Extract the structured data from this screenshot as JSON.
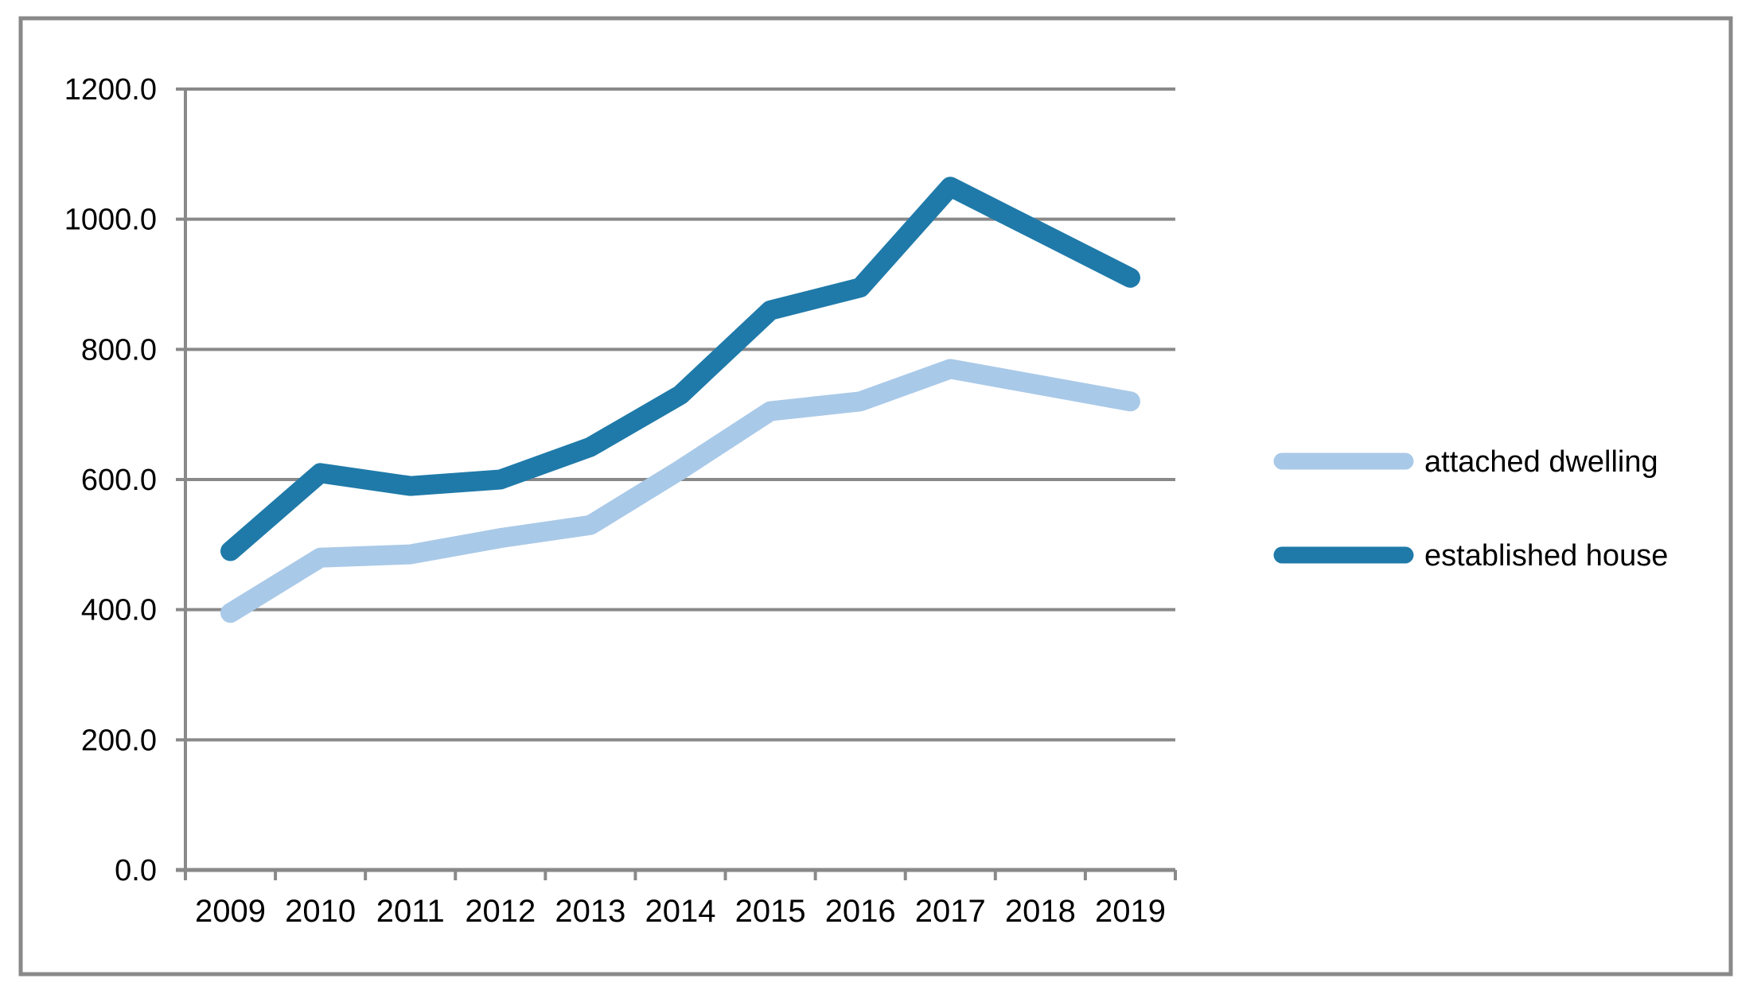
{
  "chart_data": {
    "type": "line",
    "title": "",
    "xlabel": "",
    "ylabel": "",
    "categories": [
      "2009",
      "2010",
      "2011",
      "2012",
      "2013",
      "2014",
      "2015",
      "2016",
      "2017",
      "2018",
      "2019"
    ],
    "series": [
      {
        "name": "attached dwelling",
        "color": "#a9c9e8",
        "values": [
          395,
          480,
          485,
          510,
          530,
          615,
          705,
          720,
          770,
          745,
          720
        ]
      },
      {
        "name": "established house",
        "color": "#1f7aa9",
        "values": [
          490,
          610,
          590,
          600,
          650,
          730,
          860,
          895,
          1050,
          980,
          910
        ]
      }
    ],
    "ylim": [
      0,
      1200
    ],
    "ytick_step": 200,
    "ytick_labels": [
      "0.0",
      "200.0",
      "400.0",
      "600.0",
      "800.0",
      "1000.0",
      "1200.0"
    ],
    "grid": "horizontal",
    "gridline_color": "#898989",
    "axis_color": "#898989",
    "border_color": "#898989",
    "text_color": "#000000",
    "legend_position": "right"
  }
}
